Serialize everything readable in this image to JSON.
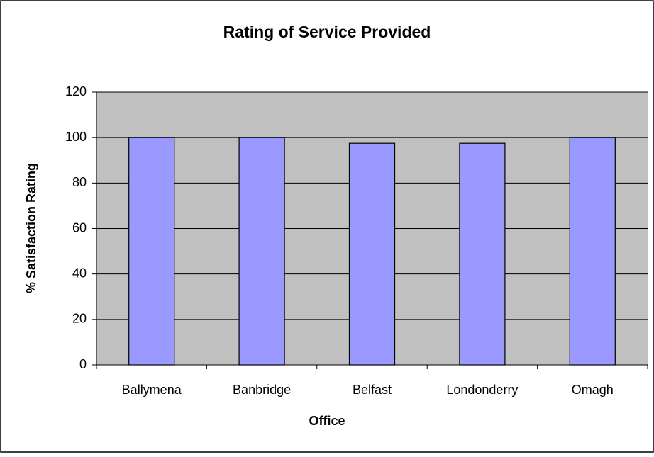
{
  "chart_data": {
    "type": "bar",
    "title": "Rating of Service Provided",
    "x_label": "Office",
    "y_label": "% Satisfaction Rating",
    "categories": [
      "Ballymena",
      "Banbridge",
      "Belfast",
      "Londonderry",
      "Omagh"
    ],
    "values": [
      100,
      100,
      97.5,
      97.5,
      100
    ],
    "color": "#9999ff",
    "ylim": [
      0,
      120
    ],
    "yticks": [
      0,
      20,
      40,
      60,
      80,
      100,
      120
    ],
    "grid": true
  }
}
